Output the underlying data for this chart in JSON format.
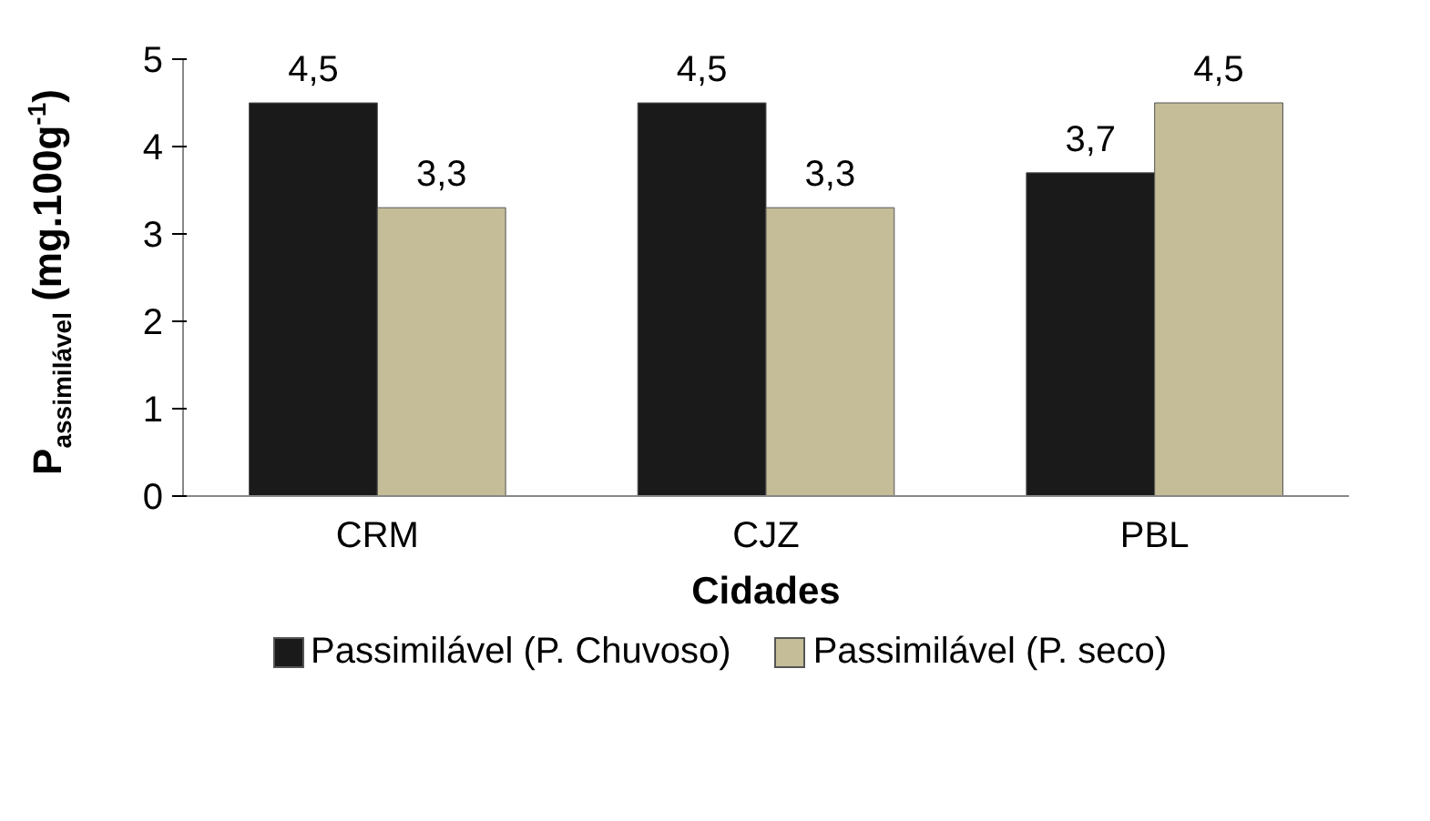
{
  "chart_data": {
    "type": "bar",
    "xlabel": "Cidades",
    "ylabel": "P$_{assimilável}$ (mg.100g$^{-1}$)",
    "categories": [
      "CRM",
      "CJZ",
      "PBL"
    ],
    "series": [
      {
        "name": "Passimilável (P. Chuvoso)",
        "color": "#1a1a1a",
        "values": [
          4.5,
          4.5,
          3.7
        ],
        "value_labels": [
          "4,5",
          "4,5",
          "3,7"
        ]
      },
      {
        "name": "Passimilável (P. seco)",
        "color": "#c4bd97",
        "values": [
          3.3,
          3.3,
          4.5
        ],
        "value_labels": [
          "3,3",
          "3,3",
          "4,5"
        ]
      }
    ],
    "ylim": [
      0,
      5
    ],
    "yticks": [
      0,
      1,
      2,
      3,
      4,
      5
    ],
    "grid": false,
    "legend": "bottom"
  }
}
